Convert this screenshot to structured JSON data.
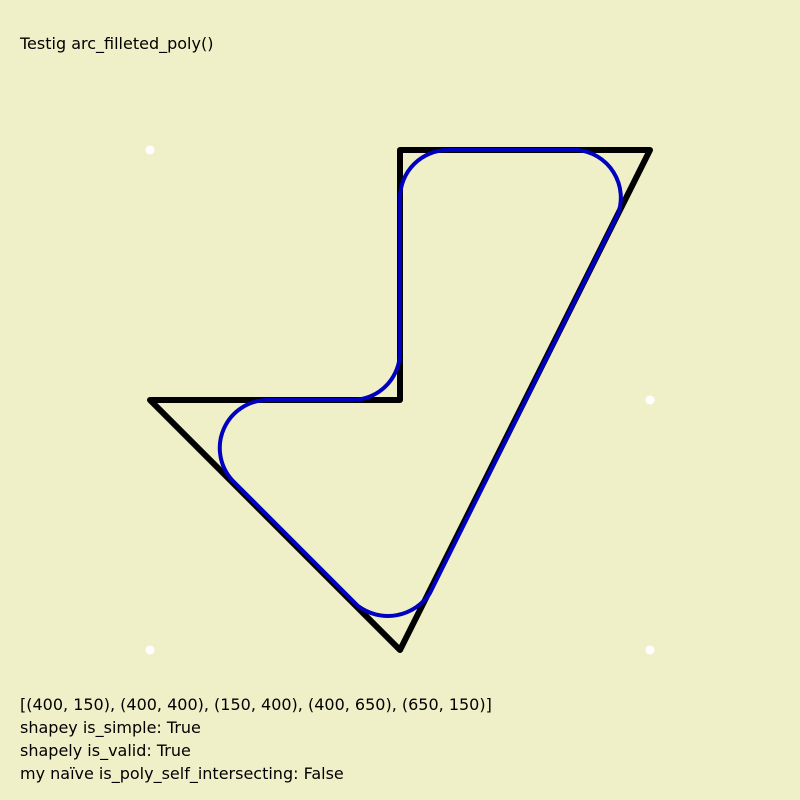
{
  "title": "Testig arc_filleted_poly()",
  "points_label": "[(400, 150), (400, 400), (150, 400), (400, 650), (650, 150)]",
  "shapely_is_simple": "shapey is_simple: True",
  "shapely_is_valid": "shapely is_valid: True",
  "self_intersecting": "my naïve is_poly_self_intersecting: False",
  "colors": {
    "background": "#efefc8",
    "polygon_stroke": "#000000",
    "fillet_stroke": "#0000c0",
    "marker": "#ffffff"
  }
}
